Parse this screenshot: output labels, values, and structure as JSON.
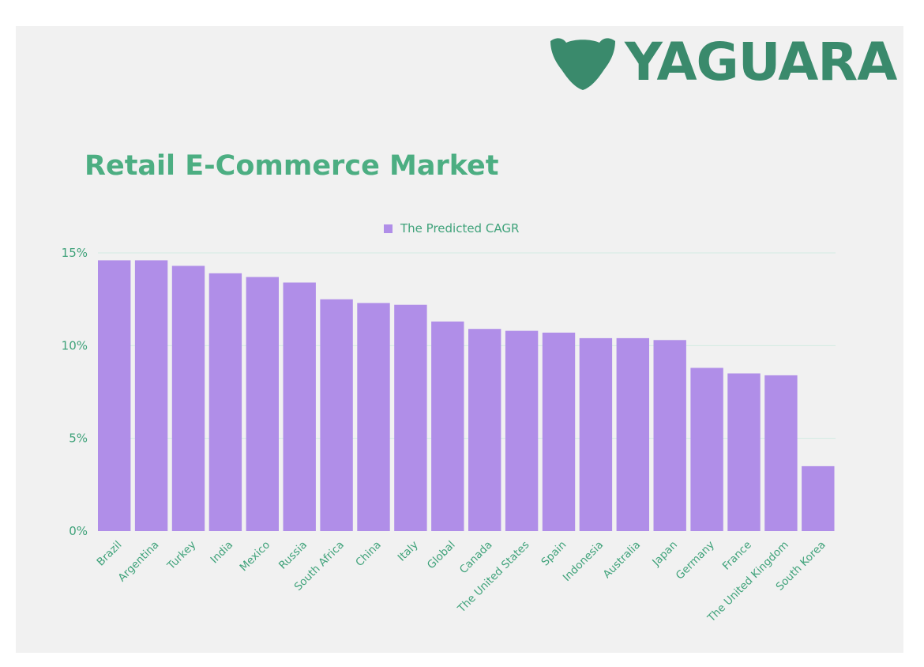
{
  "colors": {
    "background": "#f1f1f1",
    "brand_green": "#3a8a6c",
    "title_green": "#4cae82",
    "label_green": "#3fa27a",
    "bar": "#b08ee8",
    "grid": "#d2ebe2"
  },
  "logo": {
    "text": "YAGUARA",
    "icon": "jaguar-head-icon"
  },
  "chart_data": {
    "type": "bar",
    "title": "Retail E-Commerce Market",
    "xlabel": "",
    "ylabel": "",
    "categories": [
      "Brazil",
      "Argentina",
      "Turkey",
      "India",
      "Mexico",
      "Russia",
      "South Africa",
      "China",
      "Italy",
      "Global",
      "Canada",
      "The United States",
      "Spain",
      "Indonesia",
      "Australia",
      "Japan",
      "Germany",
      "France",
      "The United Kingdom",
      "South Korea"
    ],
    "series": [
      {
        "name": "The Predicted CAGR",
        "values": [
          14.6,
          14.6,
          14.3,
          13.9,
          13.7,
          13.4,
          12.5,
          12.3,
          12.2,
          11.3,
          10.9,
          10.8,
          10.7,
          10.4,
          10.4,
          10.3,
          8.8,
          8.5,
          8.4,
          3.5
        ]
      }
    ],
    "ylim": [
      0,
      15
    ],
    "yticks": [
      "0%",
      "5%",
      "10%",
      "15%"
    ],
    "ytick_values": [
      0,
      5,
      10,
      15
    ],
    "grid": true,
    "legend_position": "top-center"
  }
}
